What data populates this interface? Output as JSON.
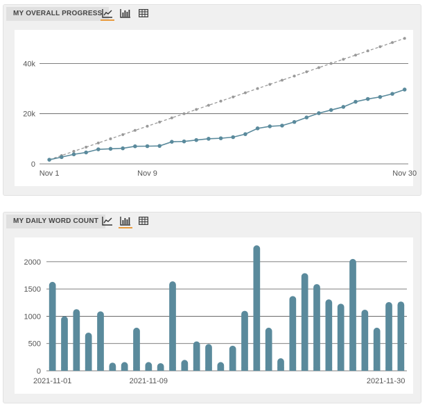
{
  "panels": [
    {
      "tab_label": "MY OVERALL PROGRESS",
      "views": [
        {
          "icon": "line-chart-icon",
          "active": true
        },
        {
          "icon": "bar-chart-icon",
          "active": false
        },
        {
          "icon": "table-icon",
          "active": false
        }
      ]
    },
    {
      "tab_label": "MY DAILY WORD COUNT",
      "views": [
        {
          "icon": "line-chart-icon",
          "active": false
        },
        {
          "icon": "bar-chart-icon",
          "active": true
        },
        {
          "icon": "table-icon",
          "active": false
        }
      ]
    }
  ],
  "colors": {
    "series": "#5a8a9c",
    "target": "#999999",
    "accent": "#e89a3c",
    "grid": "#555555"
  },
  "chart_data": [
    {
      "type": "line",
      "title": "",
      "x": [
        1,
        2,
        3,
        4,
        5,
        6,
        7,
        8,
        9,
        10,
        11,
        12,
        13,
        14,
        15,
        16,
        17,
        18,
        19,
        20,
        21,
        22,
        23,
        24,
        25,
        26,
        27,
        28,
        29,
        30
      ],
      "x_tick_labels": [
        "Nov 1",
        "Nov 9",
        "Nov 30"
      ],
      "x_tick_positions": [
        1,
        9,
        30
      ],
      "y_ticks": [
        0,
        20000,
        40000
      ],
      "y_tick_labels": [
        "0",
        "20k",
        "40k"
      ],
      "ylim": [
        0,
        52000
      ],
      "xlim": [
        0.2,
        30.3
      ],
      "grid": true,
      "series": [
        {
          "role": "target",
          "style": "dashed",
          "values": [
            1667,
            3333,
            5000,
            6667,
            8333,
            10000,
            11667,
            13333,
            15000,
            16667,
            18333,
            20000,
            21667,
            23333,
            25000,
            26667,
            28333,
            30000,
            31667,
            33333,
            35000,
            36667,
            38333,
            40000,
            41667,
            43333,
            45000,
            46667,
            48333,
            50000
          ]
        },
        {
          "role": "actual",
          "style": "solid",
          "values": [
            1650,
            2700,
            3800,
            4550,
            5800,
            6000,
            6200,
            7000,
            7050,
            7150,
            8800,
            8950,
            9500,
            10000,
            10200,
            10650,
            11850,
            14150,
            14950,
            15250,
            16700,
            18500,
            20200,
            21450,
            22700,
            24750,
            25850,
            26650,
            27900,
            29600
          ]
        }
      ]
    },
    {
      "type": "bar",
      "title": "",
      "categories": [
        "2021-11-01",
        "2021-11-02",
        "2021-11-03",
        "2021-11-04",
        "2021-11-05",
        "2021-11-06",
        "2021-11-07",
        "2021-11-08",
        "2021-11-09",
        "2021-11-10",
        "2021-11-11",
        "2021-11-12",
        "2021-11-13",
        "2021-11-14",
        "2021-11-15",
        "2021-11-16",
        "2021-11-17",
        "2021-11-18",
        "2021-11-19",
        "2021-11-20",
        "2021-11-21",
        "2021-11-22",
        "2021-11-23",
        "2021-11-24",
        "2021-11-25",
        "2021-11-26",
        "2021-11-27",
        "2021-11-28",
        "2021-11-29",
        "2021-11-30"
      ],
      "values": [
        1630,
        1000,
        1130,
        700,
        1090,
        150,
        160,
        790,
        160,
        140,
        1640,
        200,
        540,
        490,
        160,
        460,
        1100,
        2300,
        790,
        230,
        1370,
        1790,
        1590,
        1310,
        1230,
        2050,
        1120,
        790,
        1260,
        1270
      ],
      "x_tick_labels": [
        "2021-11-01",
        "2021-11-09",
        "2021-11-30"
      ],
      "x_tick_indices": [
        0,
        8,
        29
      ],
      "y_ticks": [
        0,
        500,
        1000,
        1500,
        2000
      ],
      "y_tick_labels": [
        "0",
        "500",
        "1000",
        "1500",
        "2000"
      ],
      "ylim": [
        0,
        2380
      ],
      "grid": true
    }
  ]
}
